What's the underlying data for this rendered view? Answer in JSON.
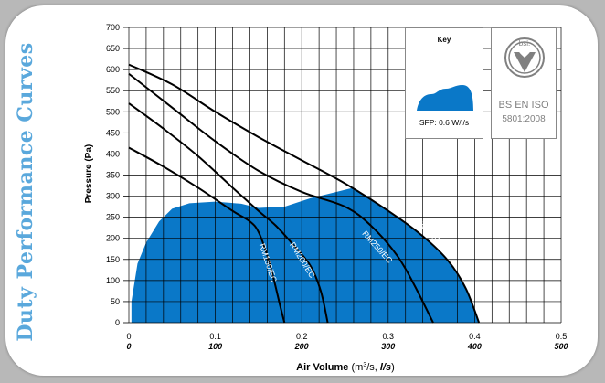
{
  "side_title": "Duty Performance Curves",
  "key": {
    "title": "Key",
    "sfp_label": "SFP: 0.6 W/l/s"
  },
  "certification": {
    "logo_text": "bsi.",
    "line1": "BS EN ISO",
    "line2": "5801:2008"
  },
  "colors": {
    "fill": "#0a78c8",
    "curve": "#000000",
    "grid": "#000000",
    "side_title": "#5aa8dc",
    "cert_text": "#808080"
  },
  "chart_data": {
    "type": "line",
    "ylabel": "Pressure (Pa)",
    "xlabel": "Air Volume (m³/s, l/s)",
    "xlabel_parts": {
      "prefix": "Air Volume",
      "unit1": "(m",
      "sup": "3",
      "unit2": "/s,",
      "unit3": "l/s",
      "close": ")"
    },
    "xlim": [
      0,
      0.5
    ],
    "ylim": [
      0,
      700
    ],
    "x_ticks": [
      "0",
      "0.1",
      "0.2",
      "0.3",
      "0.4",
      "0.5"
    ],
    "x_ticks_ls": [
      "0",
      "100",
      "200",
      "300",
      "400",
      "500"
    ],
    "y_ticks": [
      "0",
      "50",
      "100",
      "150",
      "200",
      "250",
      "300",
      "350",
      "400",
      "450",
      "500",
      "550",
      "600",
      "650",
      "700"
    ],
    "grid": true,
    "series": [
      {
        "name": "RM160/EC",
        "points": [
          [
            0,
            415
          ],
          [
            0.04,
            370
          ],
          [
            0.08,
            320
          ],
          [
            0.12,
            265
          ],
          [
            0.14,
            240
          ],
          [
            0.15,
            215
          ],
          [
            0.16,
            160
          ],
          [
            0.168,
            100
          ],
          [
            0.175,
            40
          ],
          [
            0.18,
            0
          ]
        ]
      },
      {
        "name": "RM200/EC",
        "points": [
          [
            0,
            520
          ],
          [
            0.04,
            460
          ],
          [
            0.08,
            395
          ],
          [
            0.12,
            320
          ],
          [
            0.15,
            265
          ],
          [
            0.17,
            230
          ],
          [
            0.19,
            185
          ],
          [
            0.21,
            135
          ],
          [
            0.222,
            75
          ],
          [
            0.23,
            0
          ]
        ]
      },
      {
        "name": "RM250/EC",
        "points": [
          [
            0,
            590
          ],
          [
            0.05,
            510
          ],
          [
            0.1,
            430
          ],
          [
            0.15,
            360
          ],
          [
            0.2,
            310
          ],
          [
            0.25,
            275
          ],
          [
            0.28,
            230
          ],
          [
            0.31,
            160
          ],
          [
            0.33,
            90
          ],
          [
            0.352,
            0
          ]
        ]
      },
      {
        "name": "RM315/EC",
        "points": [
          [
            0,
            612
          ],
          [
            0.05,
            565
          ],
          [
            0.1,
            500
          ],
          [
            0.15,
            440
          ],
          [
            0.2,
            385
          ],
          [
            0.25,
            330
          ],
          [
            0.3,
            265
          ],
          [
            0.34,
            205
          ],
          [
            0.37,
            145
          ],
          [
            0.39,
            80
          ],
          [
            0.405,
            0
          ]
        ]
      }
    ],
    "shaded_region": [
      [
        0.003,
        0
      ],
      [
        0.003,
        50
      ],
      [
        0.01,
        140
      ],
      [
        0.02,
        190
      ],
      [
        0.035,
        240
      ],
      [
        0.05,
        270
      ],
      [
        0.07,
        283
      ],
      [
        0.1,
        287
      ],
      [
        0.13,
        282
      ],
      [
        0.15,
        272
      ],
      [
        0.18,
        275
      ],
      [
        0.21,
        295
      ],
      [
        0.24,
        310
      ],
      [
        0.26,
        320
      ],
      [
        0.3,
        265
      ],
      [
        0.34,
        205
      ],
      [
        0.37,
        145
      ],
      [
        0.39,
        80
      ],
      [
        0.405,
        0
      ]
    ]
  }
}
